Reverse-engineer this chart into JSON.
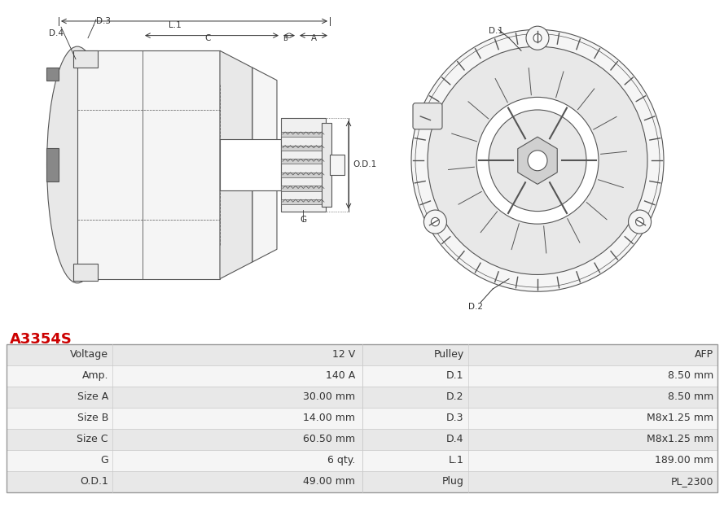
{
  "title": "A3354S",
  "title_color": "#cc0000",
  "bg_color": "#ffffff",
  "table": {
    "left_labels": [
      "Voltage",
      "Amp.",
      "Size A",
      "Size B",
      "Size C",
      "G",
      "O.D.1"
    ],
    "left_values": [
      "12 V",
      "140 A",
      "30.00 mm",
      "14.00 mm",
      "60.50 mm",
      "6 qty.",
      "49.00 mm"
    ],
    "right_labels": [
      "Pulley",
      "D.1",
      "D.2",
      "D.3",
      "D.4",
      "L.1",
      "Plug"
    ],
    "right_values": [
      "AFP",
      "8.50 mm",
      "8.50 mm",
      "M8x1.25 mm",
      "M8x1.25 mm",
      "189.00 mm",
      "PL_2300"
    ]
  },
  "row_colors": [
    "#e8e8e8",
    "#f5f5f5"
  ],
  "header_row_color": "#d0d0d0",
  "grid_color": "#cccccc",
  "label_col_color": "#d8d8d8",
  "text_color": "#333333",
  "font_size": 9,
  "image_area_color": "#f0f0f0"
}
